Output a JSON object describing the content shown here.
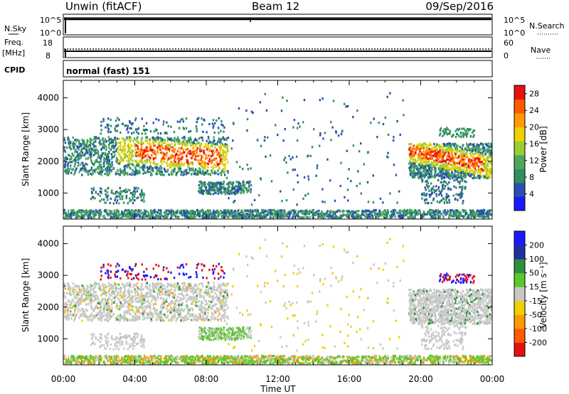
{
  "header": {
    "station": "Unwin (fitACF)",
    "beam": "Beam 12",
    "date": "09/Sep/2016"
  },
  "nsky_panel": {
    "left_label": "N.Sky",
    "right_label": "N.Search",
    "left_ticks": [
      "10^5",
      "10^0"
    ],
    "right_ticks": [
      "10^5",
      "10^0"
    ]
  },
  "freq_panel": {
    "left_label_1": "Freq.",
    "left_label_2": "[MHz]",
    "right_label": "Nave",
    "left_ticks": [
      "18",
      "8"
    ],
    "right_ticks": [
      "60",
      "0"
    ]
  },
  "cpid_panel": {
    "label": "CPID",
    "text": "normal (fast) 151"
  },
  "xaxis": {
    "label": "Time UT",
    "ticks": [
      "00:00",
      "04:00",
      "08:00",
      "12:00",
      "16:00",
      "20:00",
      "00:00"
    ]
  },
  "chart_data": [
    {
      "type": "heatmap",
      "title": "",
      "xlabel": "",
      "ylabel": "Slant Range [km]",
      "x_range_hours": [
        0,
        24
      ],
      "ylim": [
        180,
        4550
      ],
      "y_ticks": [
        "1000",
        "2000",
        "3000",
        "4000"
      ],
      "colorbar": {
        "label": "Power [dB]",
        "ticks": [
          "4",
          "8",
          "12",
          "16",
          "20",
          "24",
          "28"
        ],
        "range": [
          0,
          30
        ],
        "colors": [
          "#1a1aff",
          "#2a4fb0",
          "#2f8f5f",
          "#4ea85c",
          "#9acd32",
          "#f0d000",
          "#ff9a00",
          "#ff5a00",
          "#e81010"
        ]
      }
    },
    {
      "type": "heatmap",
      "title": "",
      "xlabel": "Time UT",
      "ylabel": "Slant Range [km]",
      "x_range_hours": [
        0,
        24
      ],
      "ylim": [
        180,
        4550
      ],
      "y_ticks": [
        "1000",
        "2000",
        "3000",
        "4000"
      ],
      "colorbar": {
        "label": "Velocity [m s⁻¹]",
        "ticks": [
          "200",
          "100",
          "50",
          "15",
          "-15",
          "-50",
          "-100",
          "-200"
        ],
        "range": [
          -250,
          250
        ],
        "colors": [
          "#e81010",
          "#ff5a00",
          "#ff9a00",
          "#f0d000",
          "#c8c8c8",
          "#5ac82a",
          "#2e8f3a",
          "#2030a0",
          "#1a1aff"
        ]
      }
    }
  ]
}
